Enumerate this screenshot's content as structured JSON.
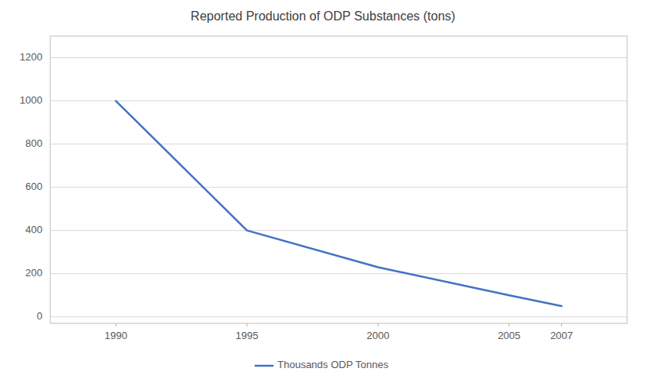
{
  "chart_data": {
    "type": "line",
    "title": "Reported Production of ODP Substances (tons)",
    "x": [
      1990,
      1995,
      2000,
      2005,
      2007
    ],
    "series": [
      {
        "name": "Thousands ODP Tonnes",
        "color": "#4472C4",
        "values": [
          1000,
          400,
          230,
          100,
          50
        ]
      }
    ],
    "xlim": [
      1987.5,
      2009.5
    ],
    "ylim": [
      -30,
      1300
    ],
    "xticks": [
      1990,
      1995,
      2000,
      2005,
      2007
    ],
    "yticks": [
      0,
      200,
      400,
      600,
      800,
      1000,
      1200
    ],
    "grid": true,
    "legend": "bottom"
  }
}
